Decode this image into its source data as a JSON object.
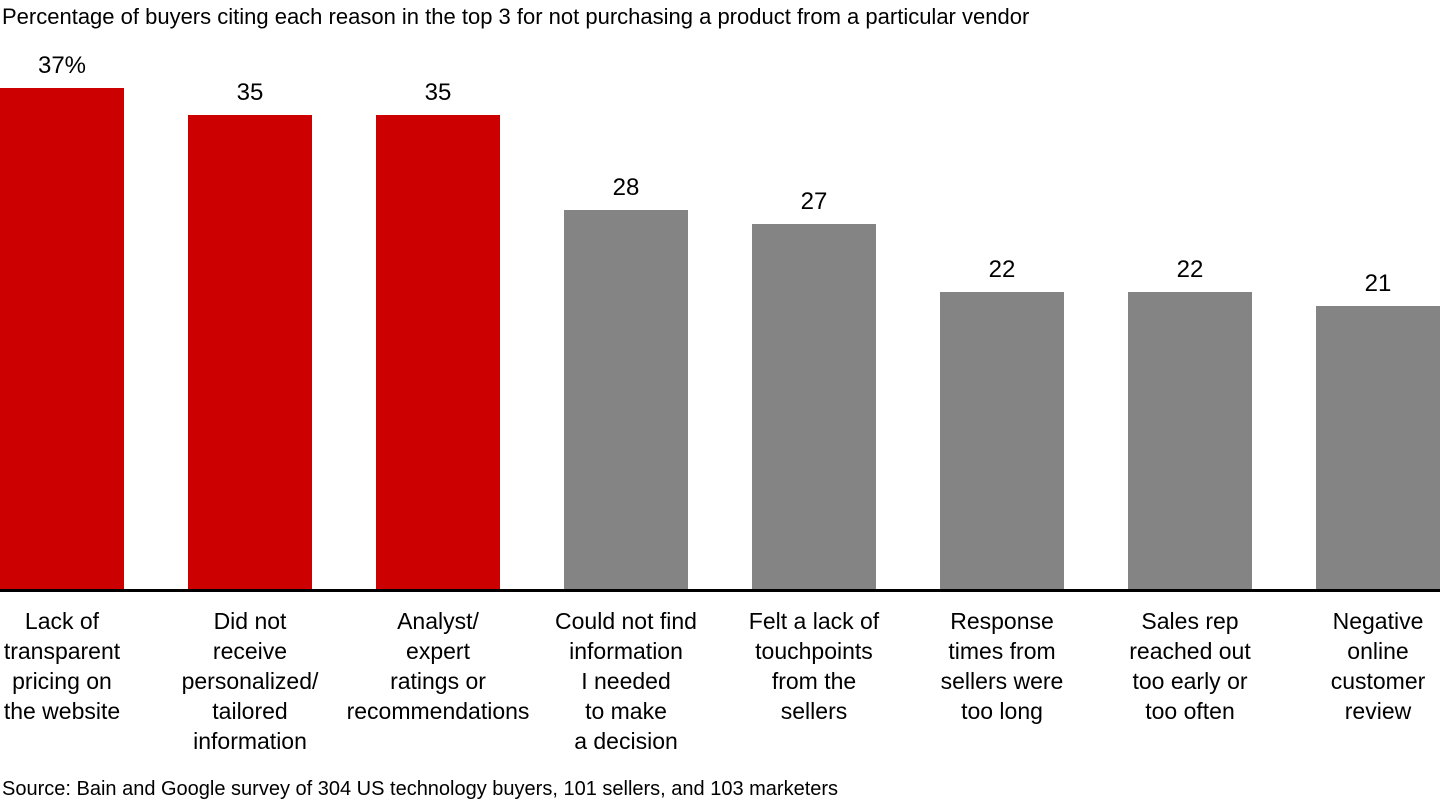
{
  "colors": {
    "highlight": "#cc0000",
    "default": "#848484",
    "axis": "#000000",
    "background": "#ffffff",
    "text": "#000000"
  },
  "chart_data": {
    "type": "bar",
    "title": "Percentage of buyers citing each reason in the top 3 for not purchasing a product from a particular vendor",
    "categories": [
      "Lack of transparent pricing on the website",
      "Did not receive personalized/ tailored information",
      "Analyst/ expert ratings or recommendations",
      "Could not find information I needed to make a decision",
      "Felt a lack of touchpoints from the sellers",
      "Response times from sellers were too long",
      "Sales rep reached out too early or too often",
      "Negative online customer review"
    ],
    "category_lines": [
      [
        "Lack of",
        "transparent",
        "pricing on",
        "the website"
      ],
      [
        "Did not",
        "receive",
        "personalized/",
        "tailored",
        "information"
      ],
      [
        "Analyst/",
        "expert",
        "ratings or",
        "recommendations"
      ],
      [
        "Could not find",
        "information",
        "I needed",
        "to make",
        "a decision"
      ],
      [
        "Felt a lack of",
        "touchpoints",
        "from the",
        "sellers"
      ],
      [
        "Response",
        "times from",
        "sellers were",
        "too long"
      ],
      [
        "Sales rep",
        "reached out",
        "too early or",
        "too often"
      ],
      [
        "Negative",
        "online",
        "customer",
        "review"
      ]
    ],
    "values": [
      37,
      35,
      35,
      28,
      27,
      22,
      22,
      21
    ],
    "value_labels": [
      "37%",
      "35",
      "35",
      "28",
      "27",
      "22",
      "22",
      "21"
    ],
    "bar_colors": [
      "highlight",
      "highlight",
      "highlight",
      "default",
      "default",
      "default",
      "default",
      "default"
    ],
    "ylabel": "",
    "xlabel": "",
    "ylim": [
      0,
      37
    ],
    "grid": false,
    "legend": false,
    "source": "Source: Bain and Google survey of 304 US technology buyers, 101 sellers, and 103 marketers"
  }
}
